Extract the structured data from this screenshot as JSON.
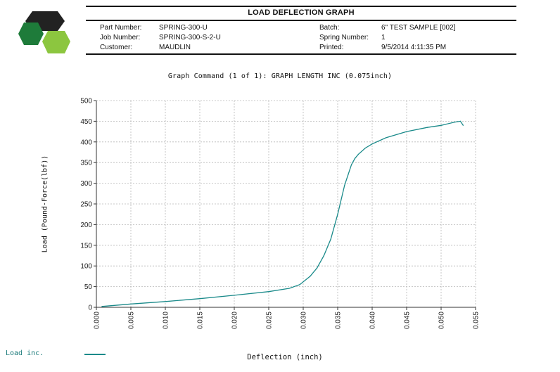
{
  "header": {
    "title": "LOAD DEFLECTION GRAPH",
    "fields_left": [
      {
        "label": "Part Number:",
        "value": "SPRING-300-U"
      },
      {
        "label": "Job Number:",
        "value": "SPRING-300-S-2-U"
      },
      {
        "label": "Customer:",
        "value": "MAUDLIN"
      }
    ],
    "fields_right": [
      {
        "label": "Batch:",
        "value": "6\" TEST SAMPLE [002]"
      },
      {
        "label": "Spring Number:",
        "value": "1"
      },
      {
        "label": "Printed:",
        "value": "9/5/2014 4:11:35 PM"
      }
    ]
  },
  "logo": {
    "icon": "hexagon-logo-icon",
    "colors": [
      "#222222",
      "#1e7b3a",
      "#8cc63f"
    ]
  },
  "chart_data": {
    "type": "line",
    "title": "Graph Command (1 of 1): GRAPH LENGTH INC (0.075inch)",
    "xlabel": "Deflection (inch)",
    "ylabel": "Load (Pound-Force(lbf))",
    "xlim": [
      0.0,
      0.055
    ],
    "ylim": [
      0,
      500
    ],
    "x_ticks": [
      "0.000",
      "0.005",
      "0.010",
      "0.015",
      "0.020",
      "0.025",
      "0.030",
      "0.035",
      "0.040",
      "0.045",
      "0.050",
      "0.055"
    ],
    "y_ticks": [
      "0",
      "50",
      "100",
      "150",
      "200",
      "250",
      "300",
      "350",
      "400",
      "450",
      "500"
    ],
    "grid": true,
    "legend_position": "bottom-left",
    "line_color": "#1a8a8a",
    "series": [
      {
        "name": "Load inc.",
        "x": [
          0.0008,
          0.005,
          0.01,
          0.015,
          0.02,
          0.025,
          0.028,
          0.0295,
          0.031,
          0.032,
          0.033,
          0.034,
          0.0345,
          0.035,
          0.0355,
          0.036,
          0.0365,
          0.037,
          0.0375,
          0.038,
          0.039,
          0.04,
          0.042,
          0.045,
          0.048,
          0.05,
          0.052,
          0.0528,
          0.0532
        ],
        "y": [
          2,
          8,
          14,
          21,
          29,
          38,
          46,
          55,
          75,
          95,
          125,
          165,
          195,
          225,
          260,
          295,
          320,
          345,
          360,
          370,
          385,
          395,
          410,
          425,
          435,
          440,
          448,
          450,
          440
        ]
      }
    ]
  },
  "legend": {
    "label": "Load inc."
  }
}
